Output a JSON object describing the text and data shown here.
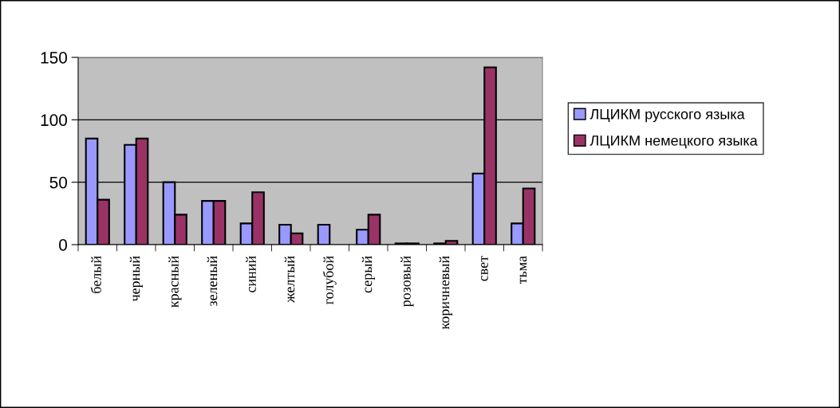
{
  "chart_data": {
    "type": "bar",
    "categories": [
      "белый",
      "черный",
      "красный",
      "зеленый",
      "синий",
      "желтый",
      "голубой",
      "серый",
      "розовый",
      "коричневый",
      "свет",
      "тьма"
    ],
    "series": [
      {
        "name": "ЛЦИКМ русского языка",
        "color": "#9999ff",
        "values": [
          85,
          80,
          50,
          35,
          17,
          16,
          16,
          12,
          1,
          1,
          57,
          17
        ]
      },
      {
        "name": "ЛЦИКМ немецкого языка",
        "color": "#993366",
        "values": [
          36,
          85,
          24,
          35,
          42,
          9,
          null,
          24,
          1,
          3,
          142,
          45
        ]
      }
    ],
    "ylim": [
      0,
      150
    ],
    "yticks": [
      0,
      50,
      100,
      150
    ],
    "grid": "y",
    "legend": "right"
  }
}
